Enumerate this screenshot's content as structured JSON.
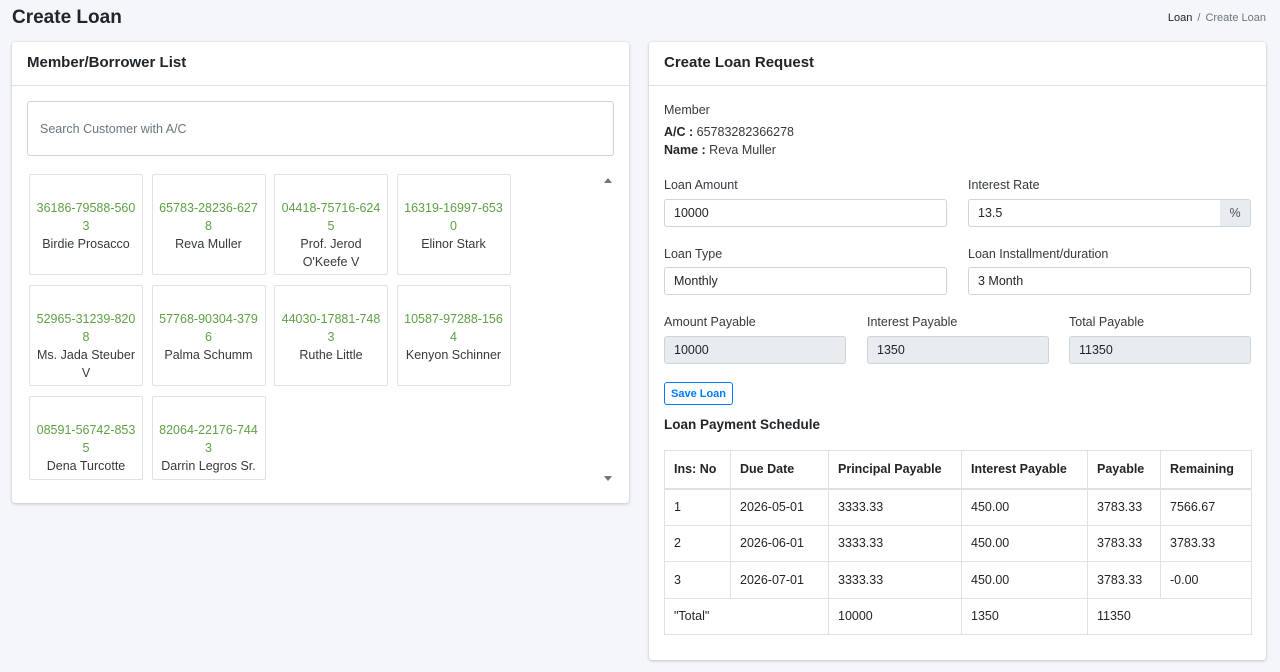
{
  "page": {
    "title": "Create Loan",
    "breadcrumb": {
      "parent": "Loan",
      "separator": "/",
      "current": "Create Loan"
    }
  },
  "borrower_panel": {
    "title": "Member/Borrower List",
    "search_placeholder": "Search Customer with A/C",
    "customers": [
      {
        "account": "36186-79588-5603",
        "name": "Birdie Prosacco"
      },
      {
        "account": "65783-28236-6278",
        "name": "Reva Muller"
      },
      {
        "account": "04418-75716-6245",
        "name": "Prof. Jerod O'Keefe V"
      },
      {
        "account": "16319-16997-6530",
        "name": "Elinor Stark"
      },
      {
        "account": "52965-31239-8208",
        "name": "Ms. Jada Steuber V"
      },
      {
        "account": "57768-90304-3796",
        "name": "Palma Schumm"
      },
      {
        "account": "44030-17881-7483",
        "name": "Ruthe Little"
      },
      {
        "account": "10587-97288-1564",
        "name": "Kenyon Schinner"
      },
      {
        "account": "08591-56742-8535",
        "name": "Dena Turcotte"
      },
      {
        "account": "82064-22176-7443",
        "name": "Darrin Legros Sr."
      }
    ]
  },
  "loan_request": {
    "title": "Create Loan Request",
    "member_label": "Member",
    "account_label": "A/C :",
    "account_value": "65783282366278",
    "name_label": "Name :",
    "name_value": "Reva Muller",
    "loan_amount_label": "Loan Amount",
    "loan_amount_value": "10000",
    "interest_rate_label": "Interest Rate",
    "interest_rate_value": "13.5",
    "interest_rate_suffix": "%",
    "loan_type_label": "Loan Type",
    "loan_type_value": "Monthly",
    "installment_label": "Loan Installment/duration",
    "installment_value": "3 Month",
    "amount_payable_label": "Amount Payable",
    "amount_payable_value": "10000",
    "interest_payable_label": "Interest Payable",
    "interest_payable_value": "1350",
    "total_payable_label": "Total Payable",
    "total_payable_value": "11350",
    "save_button": "Save Loan"
  },
  "schedule": {
    "title": "Loan Payment Schedule",
    "columns": [
      "Ins: No",
      "Due Date",
      "Principal Payable",
      "Interest Payable",
      "Payable",
      "Remaining"
    ],
    "rows": [
      [
        "1",
        "2026-05-01",
        "3333.33",
        "450.00",
        "3783.33",
        "7566.67"
      ],
      [
        "2",
        "2026-06-01",
        "3333.33",
        "450.00",
        "3783.33",
        "3783.33"
      ],
      [
        "3",
        "2026-07-01",
        "3333.33",
        "450.00",
        "3783.33",
        "-0.00"
      ]
    ],
    "total": {
      "label": "\"Total\"",
      "principal": "10000",
      "interest": "1350",
      "payable": "11350"
    }
  }
}
